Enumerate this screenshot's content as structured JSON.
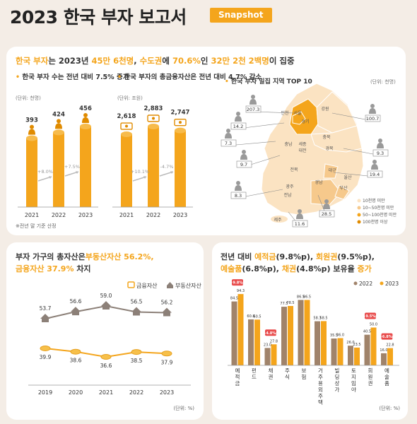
{
  "header": {
    "title": "2023 한국 부자 보고서",
    "tag": "Snapshot"
  },
  "top": {
    "headline": [
      {
        "text": "한국 부자",
        "accent": true
      },
      {
        "text": "는 2023년 ",
        "accent": false
      },
      {
        "text": "45만 6천명",
        "accent": true
      },
      {
        "text": ", ",
        "accent": false
      },
      {
        "text": "수도권",
        "accent": true
      },
      {
        "text": "에 ",
        "accent": false
      },
      {
        "text": "70.6%",
        "accent": true
      },
      {
        "text": "인 ",
        "accent": false
      },
      {
        "text": "32만 2천 2백명",
        "accent": true
      },
      {
        "text": "이 집중",
        "accent": false
      }
    ],
    "note": "※전년 말 기준 산정"
  },
  "map": {
    "title": "한국 부자 밀집 지역 TOP 10",
    "unit": "(단위: 천명)",
    "regions": [
      "인천",
      "서울",
      "경기",
      "강원",
      "충북",
      "충남",
      "세종",
      "대전",
      "경북",
      "전북",
      "대구",
      "울산",
      "광주",
      "경남",
      "부산",
      "전남",
      "제주"
    ],
    "values": [
      "207.3",
      "100.7",
      "14.2",
      "7.3",
      "9.3",
      "9.7",
      "19.4",
      "8.3",
      "28.5",
      "11.6"
    ],
    "legend": [
      "10천명 미만",
      "10~50천명 미만",
      "50~100천명 미만",
      "100천명 이상"
    ]
  },
  "chart_data": [
    {
      "type": "bar",
      "title": "한국 부자 수는 전년 대비 7.5% 증가",
      "unit": "(단위: 천명)",
      "categories": [
        "2021",
        "2022",
        "2023"
      ],
      "values": [
        393,
        424,
        456
      ],
      "growth": [
        "+8.0%",
        "+7.5%"
      ],
      "colors": {
        "bar": "#f4a51c",
        "icon": "#e08b00"
      }
    },
    {
      "type": "bar",
      "title": "한국 부자의 총금융자산은 전년 대비 4.7% 감소",
      "unit": "(단위: 조원)",
      "categories": [
        "2021",
        "2022",
        "2023"
      ],
      "values": [
        2618,
        2883,
        2747
      ],
      "labels": [
        "2,618",
        "2,883",
        "2,747"
      ],
      "growth": [
        "+10.1%",
        "-4.7%"
      ]
    },
    {
      "type": "line",
      "title_parts": [
        {
          "text": "부자 가구의 총자산은",
          "accent": false
        },
        {
          "text": "부동산자산 56.2%,",
          "accent": true
        },
        {
          "text": "금융자산 37.9%",
          "accent": true
        },
        {
          "text": " 차지",
          "accent": false
        }
      ],
      "x": [
        "2019",
        "2020",
        "2021",
        "2022",
        "2023"
      ],
      "series": [
        {
          "name": "금융자산",
          "values": [
            39.9,
            38.6,
            36.6,
            38.5,
            37.9
          ],
          "color": "#f4a51c"
        },
        {
          "name": "부동산자산",
          "values": [
            53.7,
            56.6,
            59.0,
            56.5,
            56.2
          ],
          "color": "#8c8078"
        }
      ],
      "unit": "(단위: %)"
    },
    {
      "type": "bar",
      "title_parts": [
        {
          "text": "전년 대비 ",
          "accent": false
        },
        {
          "text": "예적금",
          "accent": true
        },
        {
          "text": "(9.8%p), ",
          "accent": false
        },
        {
          "text": "회원권",
          "accent": true
        },
        {
          "text": "(9.5%p),",
          "accent": false
        },
        {
          "text": "예술품",
          "accent": true
        },
        {
          "text": "(6.8%p), ",
          "accent": false
        },
        {
          "text": "채권",
          "accent": true
        },
        {
          "text": "(4.8%p) 보유율 ",
          "accent": false
        },
        {
          "text": "증가",
          "accent": true
        }
      ],
      "categories": [
        "예적금",
        "펀드",
        "채권",
        "주식",
        "보험",
        "거주용 외 주택",
        "빌딩·상가",
        "토지·임야",
        "회원권",
        "예술품"
      ],
      "series": [
        {
          "name": "2022",
          "values": [
            84.5,
            60.8,
            23.0,
            77.5,
            86.5,
            58.3,
            35.5,
            26.0,
            40.5,
            16.0
          ],
          "color": "#a0836a"
        },
        {
          "name": "2023",
          "values": [
            94.3,
            60.5,
            27.8,
            78.5,
            86.5,
            58.5,
            36.0,
            23.5,
            50.0,
            22.8
          ],
          "color": "#f4a51c"
        }
      ],
      "highlights": [
        "+9.8%p",
        "+4.8%p",
        "+9.5%p",
        "+6.8%p"
      ],
      "unit": "(단위: %)"
    }
  ]
}
